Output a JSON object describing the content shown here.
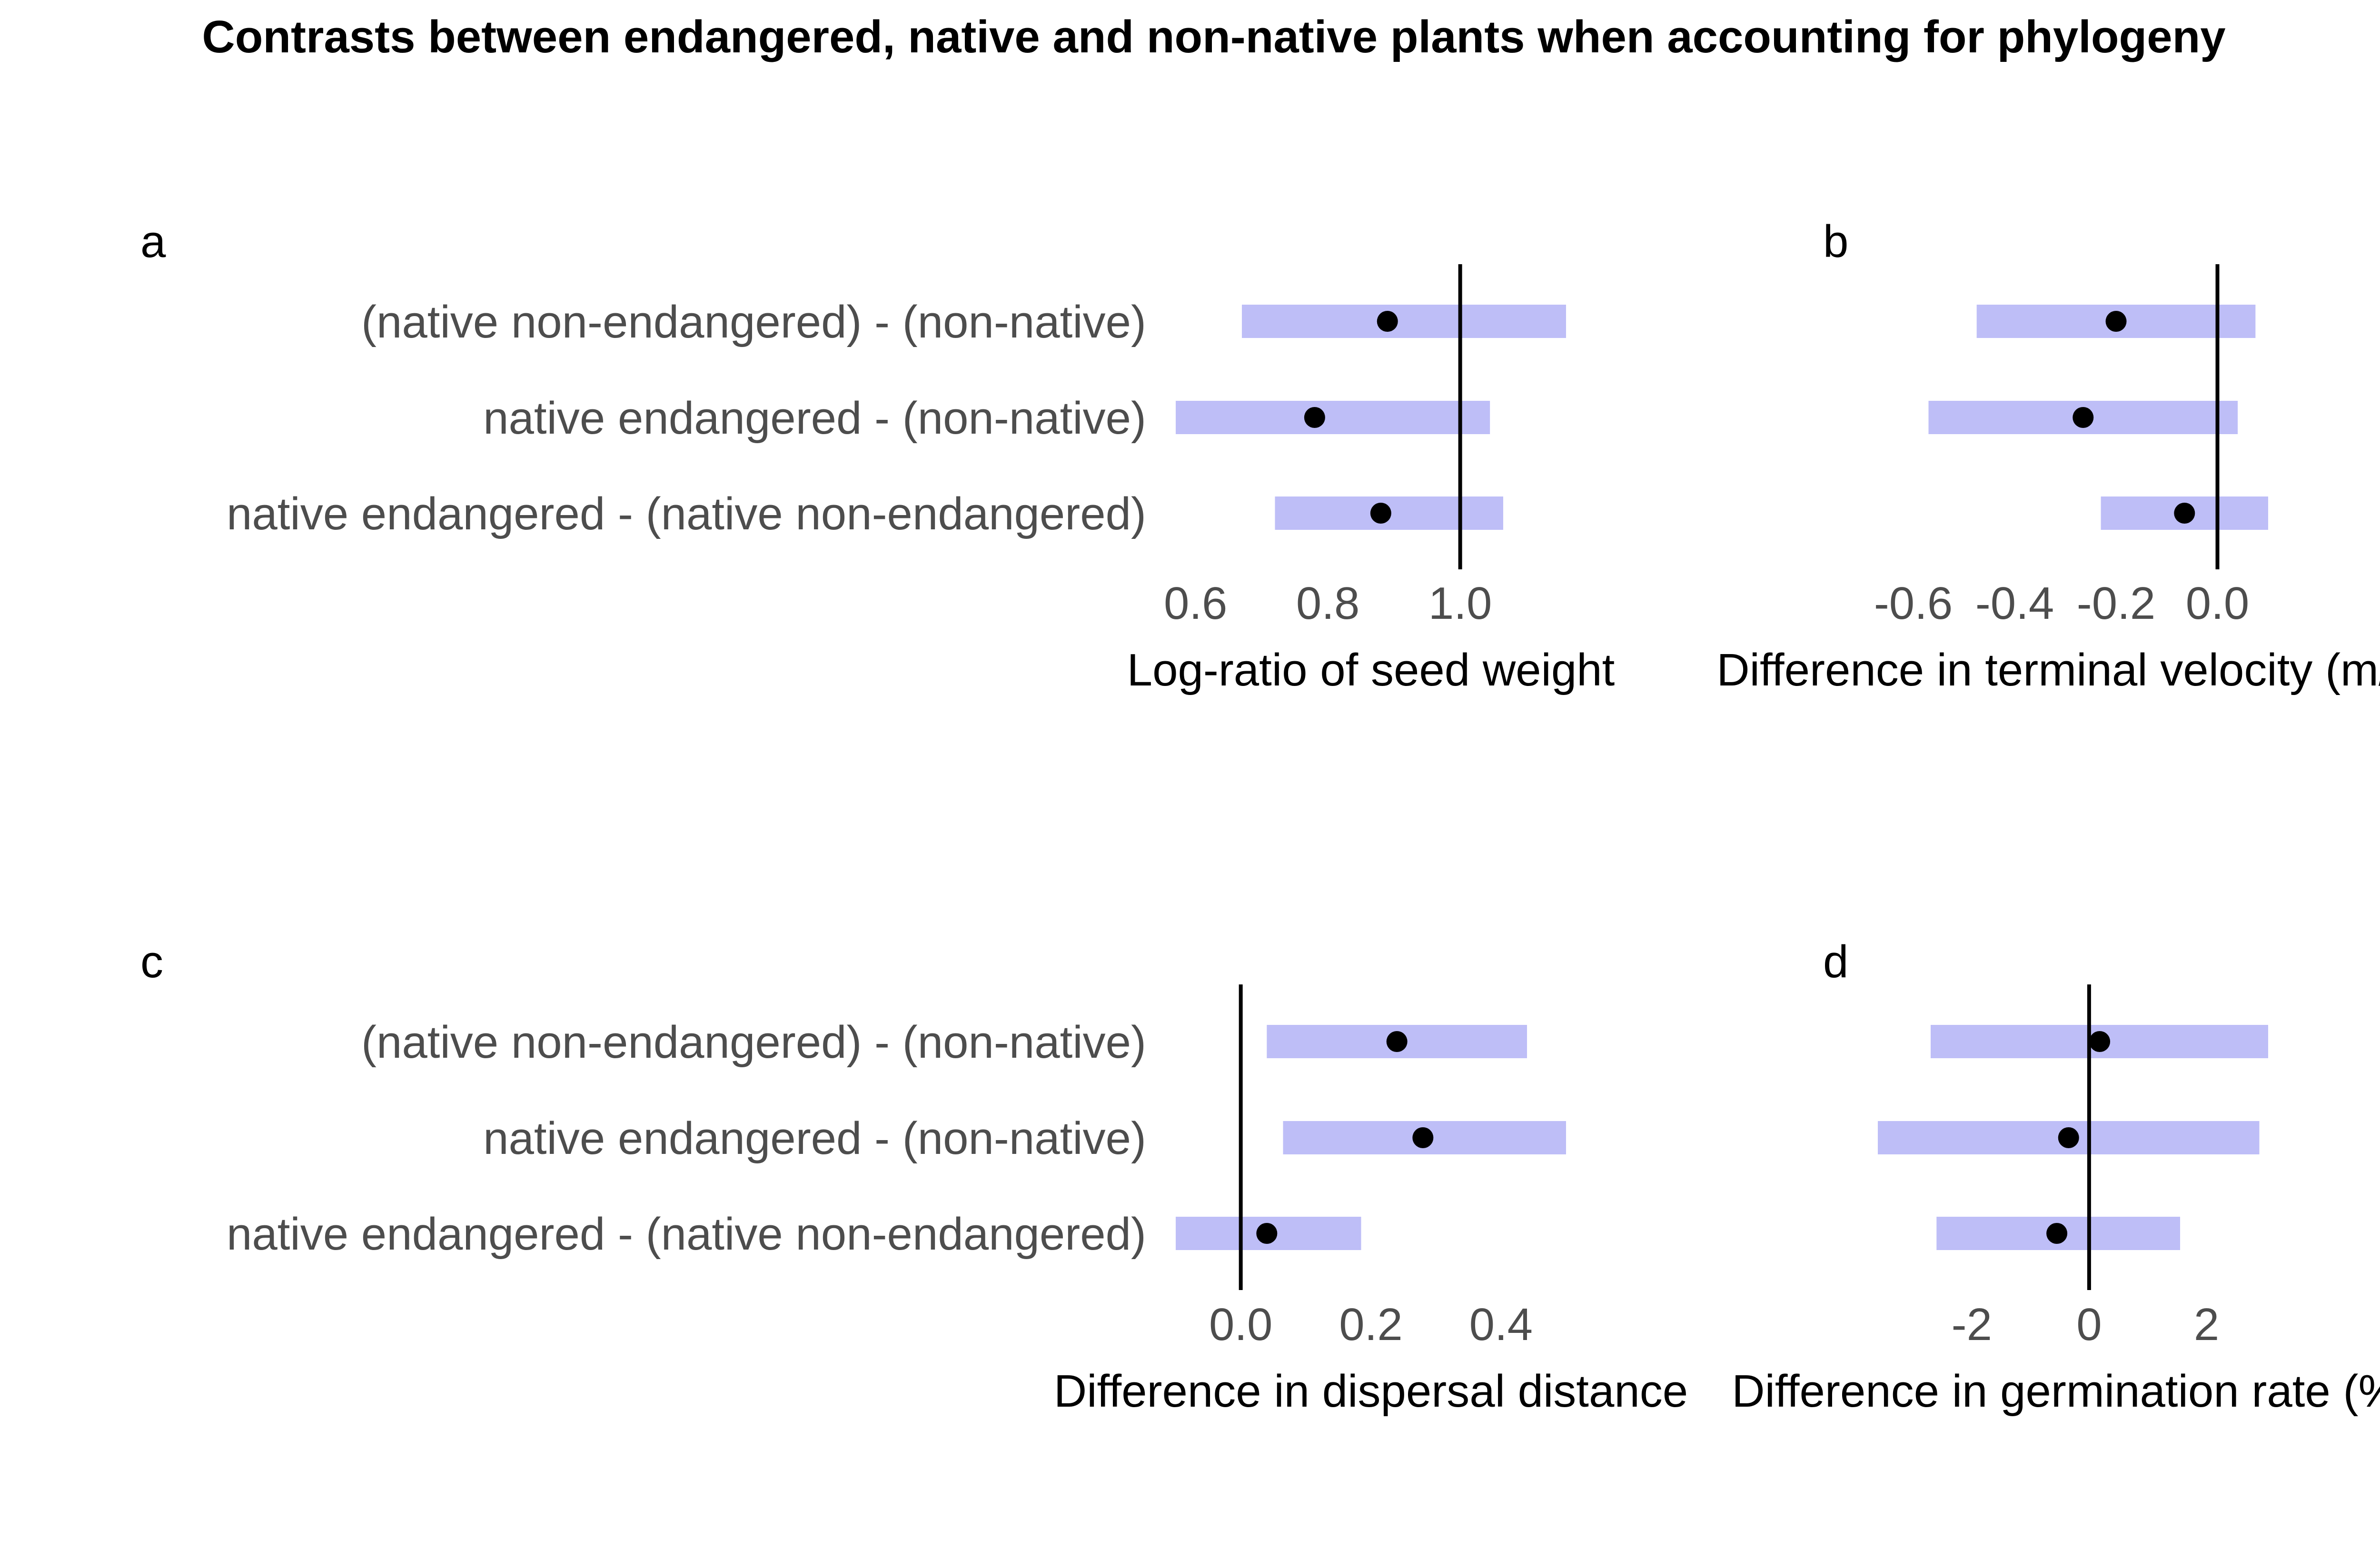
{
  "chart_data": {
    "type": "forest",
    "title": "Contrasts between endangered, native and non-native plants when accounting for phylogeny",
    "colors": {
      "interval": "#bebef7",
      "point": "#000000",
      "reference_line": "#000000",
      "label_text": "#4d4d4d"
    },
    "row_labels": [
      "(native non-endangered) - (non-native)",
      "native endangered - (non-native)",
      "native endangered - (native non-endangered)"
    ],
    "panels": [
      {
        "tag": "a",
        "xlabel": "Log-ratio of seed weight",
        "xlim": [
          0.57,
          1.16
        ],
        "ticks": [
          0.6,
          0.8,
          1.0
        ],
        "tick_labels": [
          "0.6",
          "0.8",
          "1.0"
        ],
        "reference": 1.0,
        "rows": [
          {
            "estimate": 0.89,
            "lower": 0.67,
            "upper": 1.16
          },
          {
            "estimate": 0.78,
            "lower": 0.57,
            "upper": 1.045
          },
          {
            "estimate": 0.88,
            "lower": 0.72,
            "upper": 1.065
          }
        ]
      },
      {
        "tag": "b",
        "xlabel": "Difference in terminal velocity (m/s)",
        "xlim": [
          -0.67,
          0.1
        ],
        "ticks": [
          -0.6,
          -0.4,
          -0.2,
          0.0
        ],
        "tick_labels": [
          "-0.6",
          "-0.4",
          "-0.2",
          "0.0"
        ],
        "reference": 0.0,
        "rows": [
          {
            "estimate": -0.2,
            "lower": -0.475,
            "upper": 0.075
          },
          {
            "estimate": -0.265,
            "lower": -0.57,
            "upper": 0.04
          },
          {
            "estimate": -0.065,
            "lower": -0.23,
            "upper": 0.1
          }
        ]
      },
      {
        "tag": "c",
        "xlabel": "Difference in dispersal distance",
        "xlim": [
          -0.1,
          0.5
        ],
        "ticks": [
          0.0,
          0.2,
          0.4
        ],
        "tick_labels": [
          "0.0",
          "0.2",
          "0.4"
        ],
        "reference": 0.0,
        "rows": [
          {
            "estimate": 0.24,
            "lower": 0.04,
            "upper": 0.44
          },
          {
            "estimate": 0.28,
            "lower": 0.065,
            "upper": 0.5
          },
          {
            "estimate": 0.04,
            "lower": -0.1,
            "upper": 0.185
          }
        ]
      },
      {
        "tag": "d",
        "xlabel": "Difference in germination rate (%)",
        "xlim": [
          -3.6,
          3.05
        ],
        "ticks": [
          -2,
          0,
          2
        ],
        "tick_labels": [
          "-2",
          "0",
          "2"
        ],
        "reference": 0.0,
        "rows": [
          {
            "estimate": 0.18,
            "lower": -2.7,
            "upper": 3.05
          },
          {
            "estimate": -0.35,
            "lower": -3.6,
            "upper": 2.9
          },
          {
            "estimate": -0.55,
            "lower": -2.6,
            "upper": 1.55
          }
        ]
      }
    ]
  }
}
